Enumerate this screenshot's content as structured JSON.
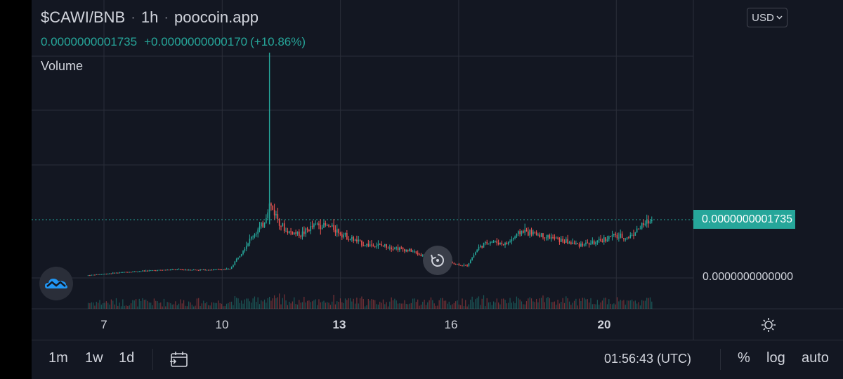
{
  "header": {
    "symbol": "$CAWI/BNB",
    "interval": "1h",
    "source": "poocoin.app",
    "separator": "·",
    "last_price": "0.0000000001735",
    "change": "+0.0000000000170",
    "change_pct": "(+10.86%)",
    "volume_label": "Volume"
  },
  "currency_button": {
    "label": "USD",
    "icon": "chevron-down-icon"
  },
  "price_scale": {
    "last_price_tag": "0.0000000001735",
    "zero_label": "0.0000000000000"
  },
  "time_axis": {
    "labels": [
      {
        "text": "7",
        "bold": false
      },
      {
        "text": "10",
        "bold": false
      },
      {
        "text": "13",
        "bold": true
      },
      {
        "text": "16",
        "bold": false
      },
      {
        "text": "20",
        "bold": true
      }
    ]
  },
  "toolbar": {
    "ranges": [
      "1m",
      "1w",
      "1d"
    ],
    "calendar_icon": "calendar-range-icon",
    "time": "01:56:43 (UTC)",
    "percent": "%",
    "log": "log",
    "auto": "auto"
  },
  "icons": {
    "logo": "poocoin-cloud-logo-icon",
    "reset": "reset-chart-icon",
    "settings": "settings-sun-icon"
  },
  "colors": {
    "background": "#131722",
    "up": "#26a69a",
    "down": "#ef5350",
    "grid": "#2a2e39",
    "text": "#d1d4dc",
    "accent_logo": "#2196f3"
  },
  "chart_data": {
    "type": "candlestick",
    "symbol": "$CAWI/BNB",
    "interval": "1h",
    "x_tick_labels": [
      "7",
      "10",
      "13",
      "16",
      "20"
    ],
    "y_tick_labels": [
      "0.0000000001735",
      "0.0000000000000"
    ],
    "last_close": 1.735e-10,
    "last_change": 1.7e-11,
    "last_change_pct": 10.86,
    "price_profile_close": [
      [
        6.6,
        8e-12
      ],
      [
        7.0,
        1.2e-11
      ],
      [
        7.6,
        1.8e-11
      ],
      [
        8.2,
        2.2e-11
      ],
      [
        8.8,
        2.5e-11
      ],
      [
        9.5,
        2.4e-11
      ],
      [
        10.2,
        2.6e-11
      ],
      [
        10.5,
        8e-11
      ],
      [
        10.8,
        1.3e-10
      ],
      [
        11.05,
        1.6e-10
      ],
      [
        11.2,
        2.2e-10
      ],
      [
        11.4,
        1.8e-10
      ],
      [
        11.6,
        1.4e-10
      ],
      [
        12.0,
        1.3e-10
      ],
      [
        12.4,
        1.6e-10
      ],
      [
        12.8,
        1.5e-10
      ],
      [
        13.2,
        1.2e-10
      ],
      [
        13.6,
        1e-10
      ],
      [
        14.2,
        9.5e-11
      ],
      [
        14.8,
        8e-11
      ],
      [
        15.4,
        5e-11
      ],
      [
        15.8,
        4.5e-11
      ],
      [
        16.2,
        3.5e-11
      ],
      [
        16.5,
        9e-11
      ],
      [
        16.8,
        1.1e-10
      ],
      [
        17.2,
        1e-10
      ],
      [
        17.6,
        1.4e-10
      ],
      [
        18.0,
        1.3e-10
      ],
      [
        18.5,
        1.15e-10
      ],
      [
        19.0,
        1e-10
      ],
      [
        19.5,
        1.05e-10
      ],
      [
        19.9,
        1.25e-10
      ],
      [
        20.3,
        1.2e-10
      ],
      [
        20.6,
        1.5e-10
      ],
      [
        20.9,
        1.735e-10
      ]
    ],
    "grid": true,
    "volume_pane": true
  }
}
